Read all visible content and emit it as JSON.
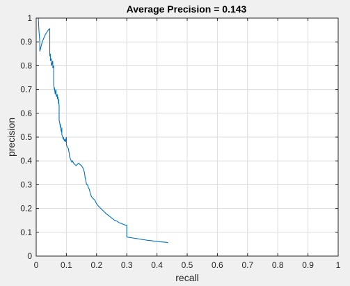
{
  "chart_data": {
    "type": "line",
    "title": "Average Precision = 0.143",
    "xlabel": "recall",
    "ylabel": "precision",
    "xlim": [
      0,
      1
    ],
    "ylim": [
      0,
      1
    ],
    "xticks": [
      0,
      0.1,
      0.2,
      0.3,
      0.4,
      0.5,
      0.6,
      0.7,
      0.8,
      0.9,
      1
    ],
    "yticks": [
      0,
      0.1,
      0.2,
      0.3,
      0.4,
      0.5,
      0.6,
      0.7,
      0.8,
      0.9,
      1
    ],
    "xtick_labels": [
      "0",
      "0.1",
      "0.2",
      "0.3",
      "0.4",
      "0.5",
      "0.6",
      "0.7",
      "0.8",
      "0.9",
      "1"
    ],
    "ytick_labels": [
      "0",
      "0.1",
      "0.2",
      "0.3",
      "0.4",
      "0.5",
      "0.6",
      "0.7",
      "0.8",
      "0.9",
      "1"
    ],
    "grid": true,
    "line_color": "#0072bd",
    "grid_color": "#dcdcdc",
    "axes_background": "#ffffff",
    "series": [
      {
        "x": [
          0.0,
          0.007,
          0.009,
          0.012,
          0.012,
          0.02,
          0.03,
          0.04,
          0.045,
          0.045,
          0.047,
          0.047,
          0.05,
          0.05,
          0.053,
          0.055,
          0.055,
          0.058,
          0.058,
          0.06,
          0.06,
          0.063,
          0.065,
          0.067,
          0.07,
          0.07,
          0.072,
          0.074,
          0.074,
          0.076,
          0.076,
          0.078,
          0.08,
          0.08,
          0.082,
          0.084,
          0.085,
          0.085,
          0.088,
          0.09,
          0.09,
          0.093,
          0.095,
          0.097,
          0.1,
          0.1,
          0.102,
          0.105,
          0.107,
          0.108,
          0.11,
          0.11,
          0.113,
          0.116,
          0.118,
          0.12,
          0.124,
          0.128,
          0.132,
          0.136,
          0.14,
          0.145,
          0.15,
          0.155,
          0.16,
          0.162,
          0.164,
          0.166,
          0.168,
          0.17,
          0.172,
          0.174,
          0.176,
          0.178,
          0.18,
          0.183,
          0.186,
          0.19,
          0.194,
          0.198,
          0.2,
          0.203,
          0.206,
          0.21,
          0.214,
          0.218,
          0.222,
          0.226,
          0.23,
          0.235,
          0.24,
          0.245,
          0.25,
          0.255,
          0.26,
          0.265,
          0.27,
          0.275,
          0.28,
          0.285,
          0.29,
          0.295,
          0.3,
          0.3,
          0.31,
          0.32,
          0.33,
          0.34,
          0.35,
          0.36,
          0.37,
          0.38,
          0.39,
          0.4,
          0.41,
          0.42,
          0.43,
          0.437
        ],
        "y": [
          1.0,
          1.0,
          0.95,
          0.9,
          0.86,
          0.9,
          0.93,
          0.95,
          0.955,
          0.84,
          0.85,
          0.82,
          0.83,
          0.8,
          0.81,
          0.82,
          0.79,
          0.8,
          0.72,
          0.7,
          0.71,
          0.68,
          0.7,
          0.67,
          0.68,
          0.66,
          0.67,
          0.64,
          0.66,
          0.63,
          0.57,
          0.56,
          0.54,
          0.555,
          0.53,
          0.52,
          0.54,
          0.51,
          0.5,
          0.49,
          0.5,
          0.485,
          0.49,
          0.48,
          0.5,
          0.47,
          0.46,
          0.455,
          0.45,
          0.44,
          0.43,
          0.42,
          0.41,
          0.4,
          0.395,
          0.4,
          0.39,
          0.385,
          0.38,
          0.385,
          0.39,
          0.385,
          0.38,
          0.37,
          0.35,
          0.33,
          0.32,
          0.305,
          0.3,
          0.3,
          0.29,
          0.285,
          0.28,
          0.27,
          0.26,
          0.25,
          0.245,
          0.24,
          0.235,
          0.225,
          0.22,
          0.215,
          0.21,
          0.205,
          0.2,
          0.195,
          0.19,
          0.185,
          0.18,
          0.175,
          0.17,
          0.165,
          0.16,
          0.155,
          0.15,
          0.148,
          0.145,
          0.14,
          0.138,
          0.135,
          0.133,
          0.13,
          0.13,
          0.08,
          0.078,
          0.076,
          0.074,
          0.072,
          0.07,
          0.068,
          0.066,
          0.065,
          0.063,
          0.062,
          0.06,
          0.059,
          0.058,
          0.056
        ]
      }
    ]
  }
}
